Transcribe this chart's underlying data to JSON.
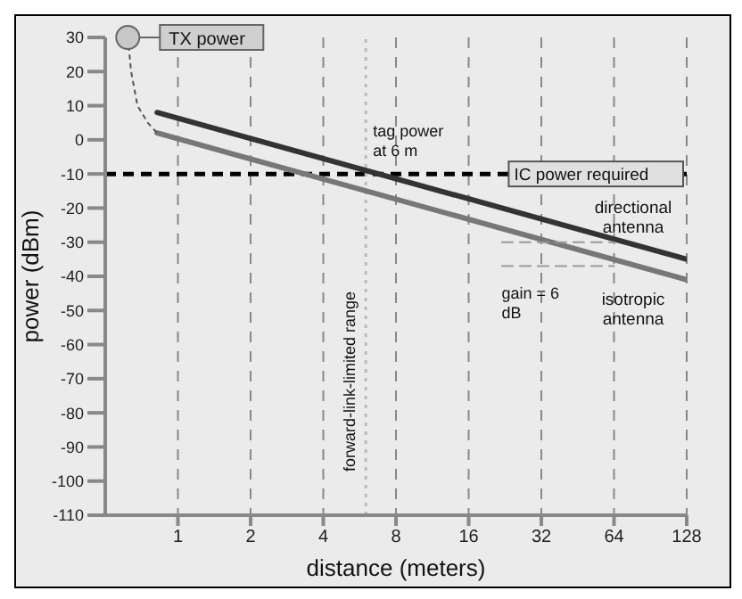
{
  "chart_data": {
    "type": "line",
    "xlabel": "distance (meters)",
    "ylabel": "power (dBm)",
    "log": "x",
    "xlim": [
      0.5,
      128
    ],
    "xticks": [
      1,
      2,
      4,
      8,
      16,
      32,
      64,
      128
    ],
    "ylim": [
      -110,
      30
    ],
    "yticks": [
      -110,
      -100,
      -90,
      -80,
      -70,
      -60,
      -50,
      -40,
      -30,
      -20,
      -10,
      0,
      10,
      20,
      30
    ],
    "grid": "x",
    "legend": "top left",
    "marker": "none",
    "series": [
      {
        "name": "directional antenna",
        "color": "#333333",
        "x": [
          0.82,
          128
        ],
        "values": [
          8,
          -35
        ],
        "line_style": "solid"
      },
      {
        "name": "isotropic antenna",
        "color": "#777777",
        "x": [
          0.82,
          128
        ],
        "values": [
          2,
          -41
        ],
        "line_style": "solid"
      },
      {
        "color": "#555555",
        "x": [
          0.62,
          0.64,
          0.68,
          0.75,
          0.82
        ],
        "values": [
          30,
          20,
          10,
          5,
          2
        ],
        "line_style": "dotted"
      },
      {
        "color": "#999999",
        "x": [
          22,
          64
        ],
        "values": [
          -30,
          -30
        ],
        "line_style": "dashed"
      },
      {
        "color": "#999999",
        "x": [
          22,
          64
        ],
        "values": [
          -37,
          -37
        ],
        "line_style": "dashed"
      },
      {
        "name": "TX power",
        "type": "scatter",
        "color": "#c8c8c8",
        "marker": "circle",
        "x": [
          0.62
        ],
        "values": [
          30
        ]
      }
    ],
    "ref_lines": [
      {
        "axis": "y",
        "value": -10,
        "label": "IC power required",
        "color": "#000000",
        "line_style": "dashed"
      },
      {
        "axis": "x",
        "value": 6,
        "label": "forward-link-limited range",
        "color": "#bbbbbb",
        "line_style": "dotted"
      }
    ],
    "annotations": [
      {
        "text": "tag power at 6 m",
        "x": 6,
        "y": -10
      },
      {
        "text": "gain = 6 dB",
        "x": 26,
        "y": -37
      }
    ]
  }
}
